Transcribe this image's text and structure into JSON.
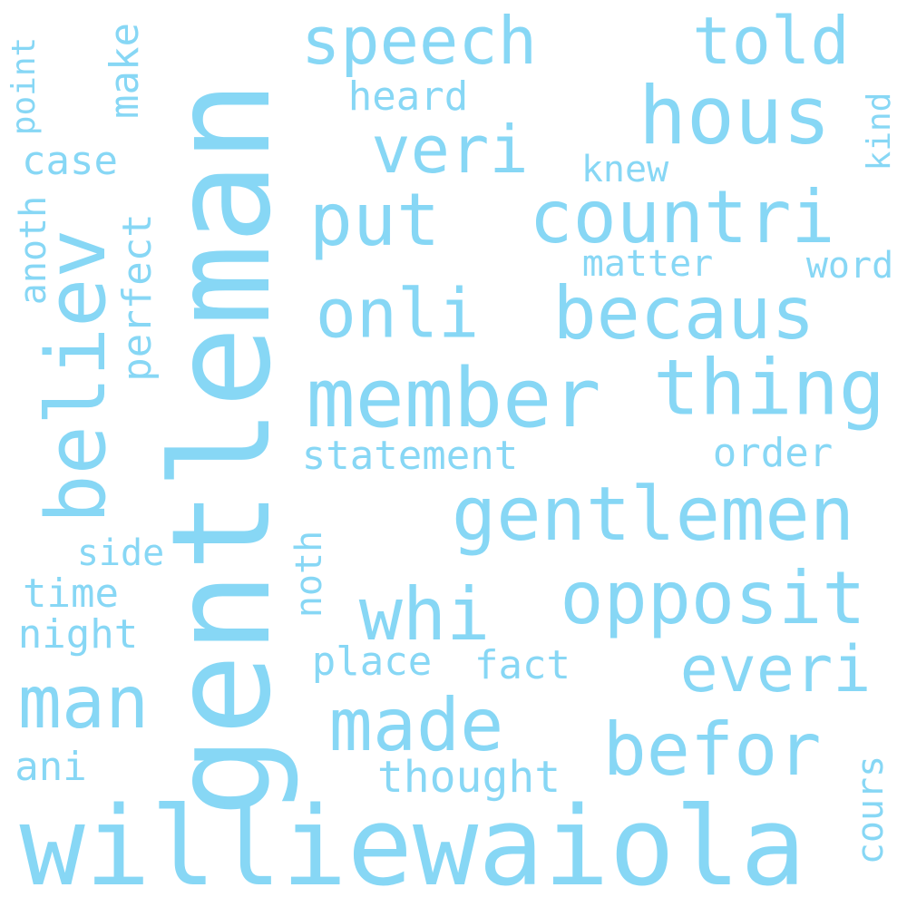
{
  "color": "#87d7f5",
  "words": [
    "gentleman",
    "williewaiola",
    "member",
    "thing",
    "gentlemen",
    "believ",
    "hous",
    "countri",
    "becaus",
    "speech",
    "told",
    "veri",
    "put",
    "onli",
    "opposit",
    "whi",
    "everi",
    "made",
    "man",
    "befor",
    "statement",
    "order",
    "heard",
    "knew",
    "matter",
    "word",
    "kind",
    "make",
    "case",
    "point",
    "anoth",
    "perfect",
    "side",
    "time",
    "night",
    "noth",
    "place",
    "fact",
    "ani",
    "thought",
    "cours"
  ]
}
